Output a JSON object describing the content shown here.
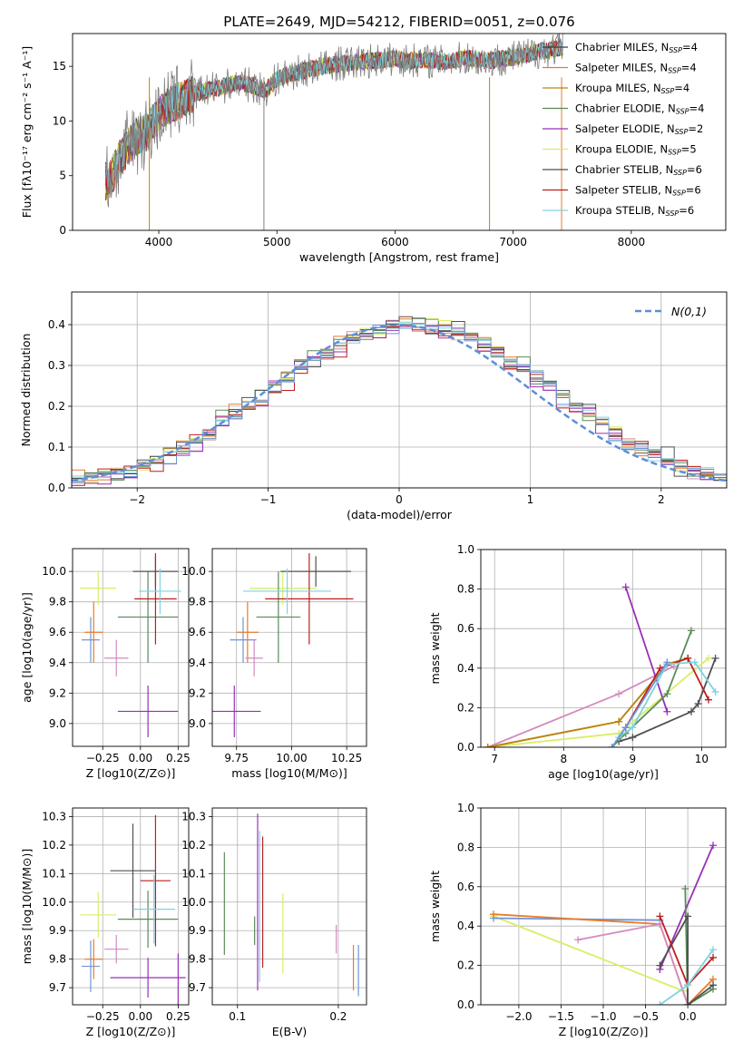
{
  "figure_title": "PLATE=2649, MJD=54212, FIBERID=0051, z=0.076",
  "colors": [
    "#3c3c3c",
    "#e87a2a",
    "#d48ac0",
    "#5a8a5a",
    "#9a2fb8",
    "#d8ee66",
    "#505050",
    "#bb1f1f",
    "#7fd3e0",
    "#6f95d8"
  ],
  "chart_data": [
    {
      "id": "spectrum",
      "type": "line",
      "title": "PLATE=2649, MJD=54212, FIBERID=0051, z=0.076",
      "xlabel": "wavelength [Angstrom, rest frame]",
      "ylabel": "Flux [fλ10⁻¹⁷ erg cm⁻² s⁻¹ A⁻¹]",
      "xlim": [
        3270,
        8800
      ],
      "ylim": [
        0,
        18
      ],
      "xticks": [
        4000,
        5000,
        6000,
        7000,
        8000
      ],
      "yticks": [
        0,
        5,
        10,
        15
      ],
      "grid": false,
      "legend_position": "top-right",
      "data": {
        "color": "#7f7f7f",
        "x": [
          3550,
          3600,
          3700,
          3800,
          3900,
          4000,
          4100,
          4200,
          4300,
          4400,
          4500,
          4600,
          4700,
          4800,
          4900,
          5000,
          5100,
          5200,
          5300,
          5400,
          5500,
          5600,
          5700,
          5800,
          5900,
          6000,
          6100,
          6200,
          6300,
          6400,
          6500,
          6600,
          6700,
          6800,
          6900,
          7000,
          7100,
          7200,
          7300,
          7400
        ],
        "y": [
          4.5,
          5.0,
          7.0,
          8.5,
          9.0,
          10.5,
          11.5,
          12.0,
          12.5,
          12.8,
          13.0,
          13.3,
          13.5,
          13.2,
          12.8,
          13.8,
          14.3,
          14.5,
          14.8,
          15.0,
          15.2,
          15.3,
          15.4,
          15.5,
          15.6,
          15.7,
          15.5,
          15.6,
          15.5,
          15.4,
          15.6,
          15.8,
          15.6,
          15.5,
          15.7,
          15.8,
          16.0,
          16.3,
          16.5,
          16.7
        ]
      },
      "series": [
        {
          "name": "Chabrier MILES, N_SSP=4",
          "label_main": "Chabrier MILES, N",
          "label_sub": "SSP",
          "label_end": "=4",
          "color": "#3c3c3c"
        },
        {
          "name": "Salpeter MILES, N_SSP=4",
          "label_main": "Salpeter MILES, N",
          "label_sub": "SSP",
          "label_end": "=4",
          "color": "#e87a2a"
        },
        {
          "name": "Kroupa MILES, N_SSP=4",
          "label_main": "Kroupa MILES, N",
          "label_sub": "SSP",
          "label_end": "=4",
          "color": "#b8860b"
        },
        {
          "name": "Chabrier ELODIE, N_SSP=4",
          "label_main": "Chabrier ELODIE, N",
          "label_sub": "SSP",
          "label_end": "=4",
          "color": "#5a8a5a"
        },
        {
          "name": "Salpeter ELODIE, N_SSP=2",
          "label_main": "Salpeter ELODIE, N",
          "label_sub": "SSP",
          "label_end": "=2",
          "color": "#9a2fb8"
        },
        {
          "name": "Kroupa ELODIE, N_SSP=5",
          "label_main": "Kroupa ELODIE, N",
          "label_sub": "SSP",
          "label_end": "=5",
          "color": "#d8ee66"
        },
        {
          "name": "Chabrier STELIB, N_SSP=6",
          "label_main": "Chabrier STELIB, N",
          "label_sub": "SSP",
          "label_end": "=6",
          "color": "#505050"
        },
        {
          "name": "Salpeter STELIB, N_SSP=6",
          "label_main": "Salpeter STELIB, N",
          "label_sub": "SSP",
          "label_end": "=6",
          "color": "#bb1f1f"
        },
        {
          "name": "Kroupa STELIB, N_SSP=6",
          "label_main": "Kroupa STELIB, N",
          "label_sub": "SSP",
          "label_end": "=6",
          "color": "#7fd3e0"
        }
      ]
    },
    {
      "id": "residuals",
      "type": "line",
      "xlabel": "(data-model)/error",
      "ylabel": "Normed distribution",
      "xlim": [
        -2.5,
        2.5
      ],
      "ylim": [
        0,
        0.48
      ],
      "xticks": [
        -2,
        -1,
        0,
        1,
        2
      ],
      "yticks": [
        0.0,
        0.1,
        0.2,
        0.3,
        0.4
      ],
      "grid": true,
      "legend_position": "top-right",
      "series": [
        {
          "name": "N(0,1)",
          "color": "#5b8fd8",
          "style": "dashed",
          "function": "gaussian",
          "mean": 0,
          "sigma": 1
        }
      ],
      "histograms_note": "",
      "histograms": {
        "bin_width": 0.1,
        "x_start": -2.5,
        "base": [
          0.02,
          0.025,
          0.03,
          0.035,
          0.04,
          0.05,
          0.065,
          0.08,
          0.095,
          0.11,
          0.13,
          0.16,
          0.18,
          0.2,
          0.22,
          0.25,
          0.27,
          0.29,
          0.31,
          0.33,
          0.35,
          0.37,
          0.38,
          0.39,
          0.395,
          0.4,
          0.4,
          0.395,
          0.39,
          0.38,
          0.37,
          0.35,
          0.33,
          0.31,
          0.29,
          0.27,
          0.25,
          0.22,
          0.2,
          0.18,
          0.16,
          0.13,
          0.11,
          0.095,
          0.08,
          0.065,
          0.05,
          0.04,
          0.035,
          0.03
        ],
        "offsets": [
          0.0,
          0.02,
          -0.015,
          0.025,
          -0.02,
          0.015,
          0.03,
          -0.025,
          0.01,
          -0.01
        ]
      }
    },
    {
      "id": "age-vs-Z",
      "type": "scatter",
      "xlabel": "Z [log10(Z/Z⊙)]",
      "ylabel": "age [log10(age/yr)]",
      "xlim": [
        -0.45,
        0.32
      ],
      "ylim": [
        8.85,
        10.15
      ],
      "xticks": [
        -0.25,
        0.0,
        0.25
      ],
      "yticks": [
        9.0,
        9.2,
        9.4,
        9.6,
        9.8,
        10.0
      ],
      "grid": true,
      "points": [
        {
          "x": -0.33,
          "y": 9.55,
          "xerr": 0.06,
          "yerr": 0.15,
          "color": "#6f95d8"
        },
        {
          "x": -0.31,
          "y": 9.6,
          "xerr": 0.06,
          "yerr": 0.2,
          "color": "#e87a2a"
        },
        {
          "x": -0.28,
          "y": 9.89,
          "xerr": 0.12,
          "yerr": 0.11,
          "color": "#d8ee66"
        },
        {
          "x": -0.16,
          "y": 9.43,
          "xerr": 0.08,
          "yerr": 0.12,
          "color": "#d48ac0"
        },
        {
          "x": 0.05,
          "y": 9.7,
          "xerr": 0.2,
          "yerr": 0.3,
          "color": "#5a8a5a"
        },
        {
          "x": 0.1,
          "y": 10.0,
          "xerr": 0.15,
          "yerr": 0.1,
          "color": "#505050"
        },
        {
          "x": 0.1,
          "y": 9.82,
          "xerr": 0.14,
          "yerr": 0.3,
          "color": "#bb1f1f"
        },
        {
          "x": 0.13,
          "y": 9.87,
          "xerr": 0.14,
          "yerr": 0.15,
          "color": "#7fd3e0"
        },
        {
          "x": 0.05,
          "y": 9.08,
          "xerr": 0.2,
          "yerr": 0.17,
          "color": "#9a2fb8"
        }
      ]
    },
    {
      "id": "age-vs-mass",
      "type": "scatter",
      "xlabel": "mass [log10(M/M⊙)]",
      "ylabel": "",
      "xlim": [
        9.64,
        10.34
      ],
      "ylim": [
        8.85,
        10.15
      ],
      "xticks": [
        9.75,
        10.0,
        10.25
      ],
      "yticks": [
        9.0,
        9.2,
        9.4,
        9.6,
        9.8,
        10.0
      ],
      "grid": true,
      "points": [
        {
          "x": 9.78,
          "y": 9.55,
          "xerr": 0.06,
          "yerr": 0.15,
          "color": "#6f95d8"
        },
        {
          "x": 9.8,
          "y": 9.6,
          "xerr": 0.05,
          "yerr": 0.2,
          "color": "#e87a2a"
        },
        {
          "x": 9.96,
          "y": 9.89,
          "xerr": 0.15,
          "yerr": 0.11,
          "color": "#d8ee66"
        },
        {
          "x": 9.83,
          "y": 9.43,
          "xerr": 0.04,
          "yerr": 0.12,
          "color": "#d48ac0"
        },
        {
          "x": 9.94,
          "y": 9.7,
          "xerr": 0.1,
          "yerr": 0.3,
          "color": "#5a8a5a"
        },
        {
          "x": 10.11,
          "y": 10.0,
          "xerr": 0.16,
          "yerr": 0.1,
          "color": "#505050"
        },
        {
          "x": 10.08,
          "y": 9.82,
          "xerr": 0.2,
          "yerr": 0.3,
          "color": "#bb1f1f"
        },
        {
          "x": 9.98,
          "y": 9.87,
          "xerr": 0.2,
          "yerr": 0.15,
          "color": "#7fd3e0"
        },
        {
          "x": 9.74,
          "y": 9.08,
          "xerr": 0.12,
          "yerr": 0.17,
          "color": "#9a2fb8"
        }
      ]
    },
    {
      "id": "weight-vs-age",
      "type": "line",
      "xlabel": "age [log10(age/yr)]",
      "ylabel": "mass weight",
      "xlim": [
        6.8,
        10.35
      ],
      "ylim": [
        0,
        1.0
      ],
      "xticks": [
        7,
        8,
        9,
        10
      ],
      "yticks": [
        0.0,
        0.2,
        0.4,
        0.6,
        0.8,
        1.0
      ],
      "grid": true,
      "series": [
        {
          "color": "#d48ac0",
          "x": [
            6.9,
            8.8,
            9.6
          ],
          "y": [
            0.0,
            0.27,
            0.41
          ]
        },
        {
          "color": "#d8ee66",
          "x": [
            6.9,
            8.8,
            10.1
          ],
          "y": [
            0.0,
            0.07,
            0.45
          ]
        },
        {
          "color": "#9a2fb8",
          "x": [
            8.9,
            9.5
          ],
          "y": [
            0.81,
            0.18
          ]
        },
        {
          "color": "#e87a2a",
          "x": [
            6.9,
            8.8,
            9.5,
            9.8
          ],
          "y": [
            0.0,
            0.13,
            0.42,
            0.45
          ]
        },
        {
          "color": "#b8860b",
          "x": [
            6.9,
            8.8,
            9.5,
            9.8
          ],
          "y": [
            0.0,
            0.13,
            0.42,
            0.45
          ]
        },
        {
          "color": "#5a8a5a",
          "x": [
            8.7,
            8.9,
            9.5,
            9.85
          ],
          "y": [
            0.0,
            0.07,
            0.27,
            0.59
          ]
        },
        {
          "color": "#505050",
          "x": [
            8.8,
            9.0,
            9.85,
            9.95,
            10.2
          ],
          "y": [
            0.03,
            0.05,
            0.18,
            0.22,
            0.45
          ]
        },
        {
          "color": "#bb1f1f",
          "x": [
            8.9,
            9.4,
            9.8,
            10.1
          ],
          "y": [
            0.1,
            0.4,
            0.45,
            0.24
          ]
        },
        {
          "color": "#7fd3e0",
          "x": [
            8.8,
            9.0,
            9.5,
            9.9,
            10.2
          ],
          "y": [
            0.05,
            0.1,
            0.42,
            0.43,
            0.28
          ]
        },
        {
          "color": "#6f95d8",
          "x": [
            8.7,
            8.9,
            9.5
          ],
          "y": [
            0.0,
            0.1,
            0.43
          ]
        }
      ]
    },
    {
      "id": "mass-vs-Z",
      "type": "scatter",
      "xlabel": "Z [log10(Z/Z⊙)]",
      "ylabel": "mass [log10(M/M⊙)]",
      "xlim": [
        -0.45,
        0.32
      ],
      "ylim": [
        9.64,
        10.33
      ],
      "xticks": [
        -0.25,
        0.0,
        0.25
      ],
      "yticks": [
        9.7,
        9.8,
        9.9,
        10.0,
        10.1,
        10.2,
        10.3
      ],
      "grid": true,
      "points": [
        {
          "x": -0.33,
          "y": 9.775,
          "xerr": 0.06,
          "yerr": 0.09,
          "color": "#6f95d8"
        },
        {
          "x": -0.31,
          "y": 9.8,
          "xerr": 0.06,
          "yerr": 0.07,
          "color": "#e87a2a"
        },
        {
          "x": -0.28,
          "y": 9.955,
          "xerr": 0.12,
          "yerr": 0.08,
          "color": "#d8ee66"
        },
        {
          "x": -0.16,
          "y": 9.835,
          "xerr": 0.08,
          "yerr": 0.05,
          "color": "#d48ac0"
        },
        {
          "x": 0.05,
          "y": 9.94,
          "xerr": 0.2,
          "yerr": 0.1,
          "color": "#5a8a5a"
        },
        {
          "x": -0.05,
          "y": 10.11,
          "xerr": 0.15,
          "yerr": 0.165,
          "color": "#505050"
        },
        {
          "x": 0.1,
          "y": 10.075,
          "xerr": 0.1,
          "yerr": 0.23,
          "color": "#bb1f1f"
        },
        {
          "x": 0.09,
          "y": 9.975,
          "xerr": 0.14,
          "yerr": 0.12,
          "color": "#7fd3e0"
        },
        {
          "x": 0.05,
          "y": 9.735,
          "xerr": 0.25,
          "yerr": 0.07,
          "color": "#9a2fb8"
        },
        {
          "x": 0.25,
          "y": 9.73,
          "xerr": 0.0,
          "yerr": 0.09,
          "color": "#9a2fb8"
        }
      ]
    },
    {
      "id": "mass-vs-EBV",
      "type": "scatter",
      "xlabel": "E(B-V)",
      "ylabel": "",
      "xlim": [
        0.075,
        0.228
      ],
      "ylim": [
        9.64,
        10.33
      ],
      "xticks": [
        0.1,
        0.2
      ],
      "yticks": [
        9.7,
        9.8,
        9.9,
        10.0,
        10.1,
        10.2,
        10.3
      ],
      "grid": true,
      "points": [
        {
          "x": 0.087,
          "y": 9.995,
          "xerr": 0,
          "yerr": 0.18,
          "color": "#5a8a5a"
        },
        {
          "x": 0.117,
          "y": 9.9,
          "xerr": 0,
          "yerr": 0.05,
          "color": "#5a8a5a"
        },
        {
          "x": 0.12,
          "y": 10.0,
          "xerr": 0,
          "yerr": 0.31,
          "color": "#9a2fb8"
        },
        {
          "x": 0.122,
          "y": 9.985,
          "xerr": 0,
          "yerr": 0.265,
          "color": "#7fd3e0"
        },
        {
          "x": 0.125,
          "y": 10.0,
          "xerr": 0,
          "yerr": 0.23,
          "color": "#bb1f1f"
        },
        {
          "x": 0.145,
          "y": 9.89,
          "xerr": 0,
          "yerr": 0.14,
          "color": "#d8ee66"
        },
        {
          "x": 0.198,
          "y": 9.87,
          "xerr": 0,
          "yerr": 0.05,
          "color": "#d48ac0"
        },
        {
          "x": 0.215,
          "y": 9.77,
          "xerr": 0,
          "yerr": 0.08,
          "color": "#e87a2a"
        },
        {
          "x": 0.22,
          "y": 9.76,
          "xerr": 0,
          "yerr": 0.09,
          "color": "#6f95d8"
        }
      ]
    },
    {
      "id": "weight-vs-Z",
      "type": "line",
      "xlabel": "Z [log10(Z/Z⊙)]",
      "ylabel": "mass weight",
      "xlim": [
        -2.45,
        0.45
      ],
      "ylim": [
        0,
        1.0
      ],
      "xticks": [
        -2.0,
        -1.5,
        -1.0,
        -0.5,
        0.0
      ],
      "yticks": [
        0.0,
        0.2,
        0.4,
        0.6,
        0.8,
        1.0
      ],
      "grid": true,
      "series": [
        {
          "color": "#d8ee66",
          "x": [
            -2.3,
            -0.05,
            0.0
          ],
          "y": [
            0.45,
            0.07,
            0.0
          ]
        },
        {
          "color": "#6f95d8",
          "x": [
            -2.3,
            -0.33
          ],
          "y": [
            0.44,
            0.43
          ]
        },
        {
          "color": "#e87a2a",
          "x": [
            -2.3,
            -0.33,
            0.0,
            0.3
          ],
          "y": [
            0.46,
            0.41,
            0.0,
            0.13
          ]
        },
        {
          "color": "#d48ac0",
          "x": [
            -1.3,
            -0.33,
            0.0
          ],
          "y": [
            0.33,
            0.41,
            0.0
          ]
        },
        {
          "color": "#9a2fb8",
          "x": [
            -0.33,
            0.3
          ],
          "y": [
            0.18,
            0.81
          ]
        },
        {
          "color": "#5a8a5a",
          "x": [
            -0.03,
            0.0,
            0.3
          ],
          "y": [
            0.59,
            0.0,
            0.08
          ]
        },
        {
          "color": "#505050",
          "x": [
            -0.33,
            0.0,
            0.0,
            0.3
          ],
          "y": [
            0.2,
            0.45,
            0.0,
            0.1
          ]
        },
        {
          "color": "#bb1f1f",
          "x": [
            -0.33,
            0.0,
            0.3
          ],
          "y": [
            0.45,
            0.1,
            0.24
          ]
        },
        {
          "color": "#7fd3e0",
          "x": [
            -0.33,
            0.0,
            0.3
          ],
          "y": [
            0.0,
            0.1,
            0.28
          ]
        }
      ]
    }
  ]
}
